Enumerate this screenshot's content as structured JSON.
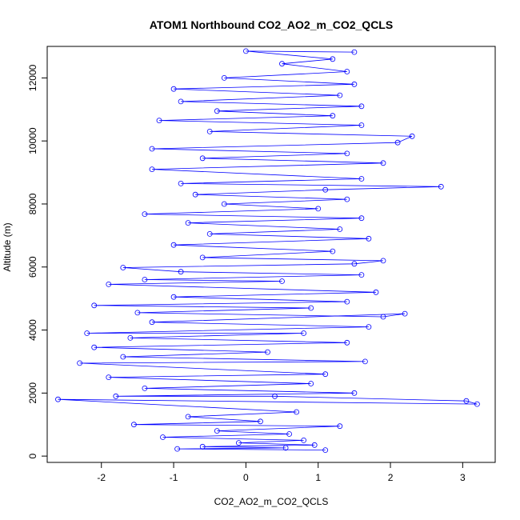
{
  "chart_data": {
    "type": "scatter",
    "title": "ATOM1 Northbound CO2_AO2_m_CO2_QCLS",
    "xlabel": "CO2_AO2_m_CO2_QCLS",
    "ylabel": "Altitude (m)",
    "xlim": [
      -2.75,
      3.45
    ],
    "ylim": [
      -200,
      13000
    ],
    "xticks": [
      -2,
      -1,
      0,
      1,
      2,
      3
    ],
    "yticks": [
      0,
      2000,
      4000,
      6000,
      8000,
      10000,
      12000
    ],
    "grid": false,
    "legend": "none",
    "series": [
      {
        "color": "#0000ff",
        "marker": "open-circle",
        "connected": true,
        "points": [
          [
            1.1,
            190
          ],
          [
            -0.95,
            230
          ],
          [
            0.55,
            260
          ],
          [
            -0.6,
            300
          ],
          [
            0.95,
            350
          ],
          [
            -0.1,
            420
          ],
          [
            0.8,
            500
          ],
          [
            -1.15,
            600
          ],
          [
            0.6,
            700
          ],
          [
            -0.4,
            800
          ],
          [
            1.3,
            950
          ],
          [
            -1.55,
            1000
          ],
          [
            0.2,
            1100
          ],
          [
            -0.8,
            1250
          ],
          [
            0.7,
            1400
          ],
          [
            -2.6,
            1800
          ],
          [
            3.2,
            1650
          ],
          [
            3.05,
            1750
          ],
          [
            0.4,
            1900
          ],
          [
            -1.8,
            1900
          ],
          [
            1.5,
            2000
          ],
          [
            -1.4,
            2150
          ],
          [
            0.9,
            2300
          ],
          [
            -1.9,
            2500
          ],
          [
            1.1,
            2600
          ],
          [
            -2.3,
            2950
          ],
          [
            1.65,
            3000
          ],
          [
            -1.7,
            3150
          ],
          [
            0.3,
            3300
          ],
          [
            -2.1,
            3450
          ],
          [
            1.4,
            3600
          ],
          [
            -1.6,
            3750
          ],
          [
            0.8,
            3900
          ],
          [
            -2.2,
            3900
          ],
          [
            1.7,
            4100
          ],
          [
            -1.3,
            4250
          ],
          [
            2.2,
            4520
          ],
          [
            1.9,
            4420
          ],
          [
            -1.5,
            4550
          ],
          [
            0.9,
            4700
          ],
          [
            -2.1,
            4780
          ],
          [
            1.4,
            4900
          ],
          [
            -1.0,
            5050
          ],
          [
            1.8,
            5200
          ],
          [
            -1.9,
            5450
          ],
          [
            0.5,
            5550
          ],
          [
            -1.4,
            5600
          ],
          [
            1.6,
            5750
          ],
          [
            -0.9,
            5850
          ],
          [
            -1.7,
            5980
          ],
          [
            1.5,
            6100
          ],
          [
            1.9,
            6200
          ],
          [
            -0.6,
            6300
          ],
          [
            1.2,
            6500
          ],
          [
            -1.0,
            6700
          ],
          [
            1.7,
            6900
          ],
          [
            -0.5,
            7050
          ],
          [
            1.3,
            7200
          ],
          [
            -0.8,
            7400
          ],
          [
            1.6,
            7550
          ],
          [
            -1.4,
            7680
          ],
          [
            1.0,
            7850
          ],
          [
            -0.3,
            8000
          ],
          [
            1.4,
            8150
          ],
          [
            -0.7,
            8300
          ],
          [
            1.1,
            8450
          ],
          [
            2.7,
            8550
          ],
          [
            -0.9,
            8650
          ],
          [
            1.6,
            8800
          ],
          [
            -1.3,
            9100
          ],
          [
            1.9,
            9300
          ],
          [
            -0.6,
            9450
          ],
          [
            1.4,
            9600
          ],
          [
            -1.3,
            9750
          ],
          [
            2.1,
            9950
          ],
          [
            2.3,
            10150
          ],
          [
            -0.5,
            10300
          ],
          [
            1.6,
            10500
          ],
          [
            -1.2,
            10650
          ],
          [
            1.2,
            10800
          ],
          [
            -0.4,
            10950
          ],
          [
            1.6,
            11100
          ],
          [
            -0.9,
            11250
          ],
          [
            1.3,
            11450
          ],
          [
            -1.0,
            11650
          ],
          [
            1.5,
            11800
          ],
          [
            -0.3,
            12000
          ],
          [
            1.4,
            12200
          ],
          [
            0.5,
            12450
          ],
          [
            1.2,
            12600
          ],
          [
            0.0,
            12850
          ],
          [
            1.5,
            12820
          ]
        ]
      }
    ]
  }
}
